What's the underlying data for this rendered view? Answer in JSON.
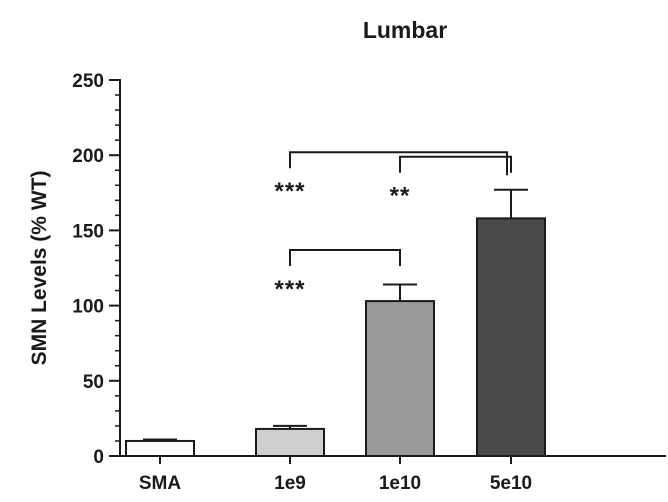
{
  "chart_data": {
    "type": "bar",
    "title": "Lumbar",
    "xlabel": "",
    "ylabel": "SMN Levels (% WT)",
    "ylim": [
      0,
      250
    ],
    "yticks": [
      0,
      50,
      100,
      150,
      200,
      250
    ],
    "categories": [
      "SMA",
      "1e9",
      "1e10",
      "5e10"
    ],
    "values": [
      10,
      18,
      103,
      158
    ],
    "errors": [
      1,
      2,
      11,
      19
    ],
    "bar_colors": [
      "#ffffff",
      "#cfcfcf",
      "#9a9a9a",
      "#4a4a4a"
    ],
    "significance": [
      {
        "from": "1e9",
        "to": "5e10",
        "label": "***",
        "y": 202
      },
      {
        "from": "1e10",
        "to": "5e10",
        "label": "**",
        "y": 199
      },
      {
        "from": "1e9",
        "to": "1e10",
        "label": "***",
        "y": 137
      }
    ],
    "grid": false,
    "legend": "none"
  }
}
